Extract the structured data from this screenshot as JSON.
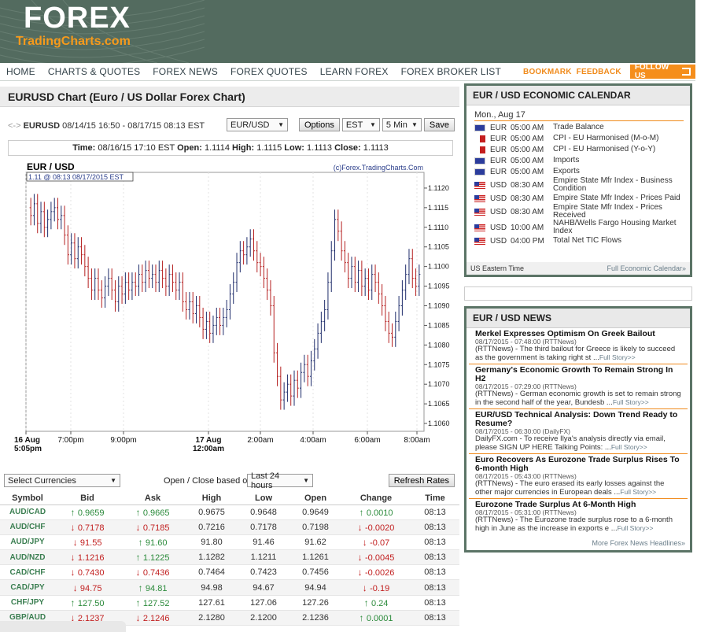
{
  "logo": {
    "main": "FOREX",
    "sub": "TradingCharts.com"
  },
  "nav": {
    "items": [
      "HOME",
      "CHARTS & QUOTES",
      "FOREX NEWS",
      "FOREX QUOTES",
      "LEARN FOREX",
      "FOREX BROKER LIST"
    ],
    "bookmark": "BOOKMARK",
    "feedback": "FEEDBACK",
    "follow": "FOLLOW US"
  },
  "page": {
    "title": "EURUSD Chart (Euro / US Dollar Forex Chart)",
    "symbol": "EURUSD",
    "range": "08/14/15 16:50 - 08/17/15 08:13 EST",
    "controls": {
      "pair": "EUR/USD",
      "options": "Options",
      "tz": "EST",
      "interval": "5 Min",
      "save": "Save"
    },
    "timeline": {
      "time_label": "Time:",
      "time": "08/16/15 17:10 EST",
      "open_label": "Open:",
      "open": "1.1114",
      "high_label": "High:",
      "high": "1.1115",
      "low_label": "Low:",
      "low": "1.1113",
      "close_label": "Close:",
      "close": "1.1113"
    }
  },
  "chart_data": {
    "type": "candlestick",
    "title": "EUR / USD",
    "subtitle": "1.11 @ 08:13  08/17/2015 EST",
    "watermark": "(c)Forex.TradingCharts.Com",
    "ylim": [
      1.1058,
      1.1124
    ],
    "yticks": [
      "1.1120",
      "1.1115",
      "1.1110",
      "1.1105",
      "1.1100",
      "1.1095",
      "1.1090",
      "1.1085",
      "1.1080",
      "1.1075",
      "1.1070",
      "1.1065",
      "1.1060"
    ],
    "xticks": [
      {
        "label": "16 Aug",
        "label2": "5:05pm",
        "bold": true
      },
      {
        "label": "7:00pm"
      },
      {
        "label": "9:00pm"
      },
      {
        "label": "17 Aug",
        "label2": "12:00am",
        "bold": true
      },
      {
        "label": "2:00am"
      },
      {
        "label": "4:00am"
      },
      {
        "label": "6:00am"
      },
      {
        "label": "8:00am"
      }
    ],
    "closes": [
      1.1113,
      1.1116,
      1.1111,
      1.1114,
      1.111,
      1.1112,
      1.1114,
      1.1115,
      1.1112,
      1.1113,
      1.1108,
      1.1103,
      1.1106,
      1.1102,
      1.1105,
      1.1103,
      1.11,
      1.1097,
      1.1094,
      1.1097,
      1.1094,
      1.1092,
      1.1095,
      1.1097,
      1.1094,
      1.1091,
      1.1095,
      1.1093,
      1.1096,
      1.1094,
      1.1096,
      1.1095,
      1.1098,
      1.1096,
      1.1099,
      1.1097,
      1.1098,
      1.1096,
      1.1099,
      1.1097,
      1.1095,
      1.1098,
      1.1096,
      1.1094,
      1.1096,
      1.1091,
      1.1089,
      1.1091,
      1.1088,
      1.109,
      1.1087,
      1.1084,
      1.1086,
      1.1083,
      1.1085,
      1.1087,
      1.1085,
      1.1087,
      1.1089,
      1.1093,
      1.1096,
      1.1101,
      1.1104,
      1.1103,
      1.1105,
      1.1107,
      1.1104,
      1.1101,
      1.11,
      1.1097,
      1.1094,
      1.109,
      1.1078,
      1.1072,
      1.1066,
      1.1068,
      1.107,
      1.1067,
      1.1071,
      1.1069,
      1.1073,
      1.1075,
      1.1072,
      1.1076,
      1.1079,
      1.1083,
      1.1086,
      1.1089,
      1.1096,
      1.1104,
      1.1112,
      1.1109,
      1.1104,
      1.1101,
      1.1097,
      1.11,
      1.1096,
      1.1099,
      1.1095,
      1.1097,
      1.1094,
      1.1098,
      1.1096,
      1.1093,
      1.109,
      1.1086,
      1.1083,
      1.1082,
      1.1086,
      1.109,
      1.1094,
      1.1098,
      1.1102,
      1.1097,
      1.1095,
      1.1098
    ]
  },
  "quotes": {
    "select_label": "Select Currencies",
    "basis_label": "Open / Close based on:",
    "basis_value": "Last 24 hours",
    "refresh": "Refresh Rates",
    "headers": [
      "Symbol",
      "Bid",
      "Ask",
      "High",
      "Low",
      "Open",
      "Change",
      "Time"
    ],
    "rows": [
      {
        "sym": "AUD/CAD",
        "bid": "0.9659",
        "bid_dir": "up",
        "ask": "0.9665",
        "ask_dir": "up",
        "high": "0.9675",
        "low": "0.9648",
        "open": "0.9649",
        "chg": "0.0010",
        "chg_dir": "up",
        "time": "08:13"
      },
      {
        "sym": "AUD/CHF",
        "bid": "0.7178",
        "bid_dir": "dn",
        "ask": "0.7185",
        "ask_dir": "dn",
        "high": "0.7216",
        "low": "0.7178",
        "open": "0.7198",
        "chg": "-0.0020",
        "chg_dir": "dn",
        "time": "08:13"
      },
      {
        "sym": "AUD/JPY",
        "bid": "91.55",
        "bid_dir": "dn",
        "ask": "91.60",
        "ask_dir": "up",
        "high": "91.80",
        "low": "91.46",
        "open": "91.62",
        "chg": "-0.07",
        "chg_dir": "dn",
        "time": "08:13"
      },
      {
        "sym": "AUD/NZD",
        "bid": "1.1216",
        "bid_dir": "dn",
        "ask": "1.1225",
        "ask_dir": "up",
        "high": "1.1282",
        "low": "1.1211",
        "open": "1.1261",
        "chg": "-0.0045",
        "chg_dir": "dn",
        "time": "08:13"
      },
      {
        "sym": "CAD/CHF",
        "bid": "0.7430",
        "bid_dir": "dn",
        "ask": "0.7436",
        "ask_dir": "dn",
        "high": "0.7464",
        "low": "0.7423",
        "open": "0.7456",
        "chg": "-0.0026",
        "chg_dir": "dn",
        "time": "08:13"
      },
      {
        "sym": "CAD/JPY",
        "bid": "94.75",
        "bid_dir": "dn",
        "ask": "94.81",
        "ask_dir": "up",
        "high": "94.98",
        "low": "94.67",
        "open": "94.94",
        "chg": "-0.19",
        "chg_dir": "dn",
        "time": "08:13"
      },
      {
        "sym": "CHF/JPY",
        "bid": "127.50",
        "bid_dir": "up",
        "ask": "127.52",
        "ask_dir": "up",
        "high": "127.61",
        "low": "127.06",
        "open": "127.26",
        "chg": "0.24",
        "chg_dir": "up",
        "time": "08:13"
      },
      {
        "sym": "GBP/AUD",
        "bid": "2.1237",
        "bid_dir": "dn",
        "ask": "2.1246",
        "ask_dir": "dn",
        "high": "2.1280",
        "low": "2.1200",
        "open": "2.1236",
        "chg": "0.0001",
        "chg_dir": "up",
        "time": "08:13"
      }
    ]
  },
  "calendar": {
    "title": "EUR / USD ECONOMIC CALENDAR",
    "date": "Mon., Aug 17",
    "events": [
      {
        "flag": "eu",
        "cur": "EUR",
        "time": "05:00 AM",
        "name": "Trade Balance"
      },
      {
        "flag": "it",
        "cur": "EUR",
        "time": "05:00 AM",
        "name": "CPI - EU Harmonised (M-o-M)"
      },
      {
        "flag": "it",
        "cur": "EUR",
        "time": "05:00 AM",
        "name": "CPI - EU Harmonised (Y-o-Y)"
      },
      {
        "flag": "eu",
        "cur": "EUR",
        "time": "05:00 AM",
        "name": "Imports"
      },
      {
        "flag": "eu",
        "cur": "EUR",
        "time": "05:00 AM",
        "name": "Exports"
      },
      {
        "flag": "us",
        "cur": "USD",
        "time": "08:30 AM",
        "name": "Empire State Mfr Index - Business Condition",
        "tall": true
      },
      {
        "flag": "us",
        "cur": "USD",
        "time": "08:30 AM",
        "name": "Empire State Mfr Index - Prices Paid"
      },
      {
        "flag": "us",
        "cur": "USD",
        "time": "08:30 AM",
        "name": "Empire State Mfr Index - Prices Received",
        "tall": true
      },
      {
        "flag": "us",
        "cur": "USD",
        "time": "10:00 AM",
        "name": "NAHB/Wells Fargo Housing Market Index",
        "tall": true
      },
      {
        "flag": "us",
        "cur": "USD",
        "time": "04:00 PM",
        "name": "Total Net TIC Flows"
      }
    ],
    "foot_left": "US Eastern Time",
    "foot_right": "Full Economic Calendar»"
  },
  "news": {
    "title": "EUR / USD NEWS",
    "items": [
      {
        "h": "Merkel Expresses Optimism On Greek Bailout",
        "d": "08/17/2015 - 07:48:00 (RTTNews)",
        "s": "(RTTNews) - The third bailout for Greece is likely to succeed as the government is taking right st ...",
        "more": "Full Story>>"
      },
      {
        "h": "Germany's Economic Growth To Remain Strong In H2",
        "d": "08/17/2015 - 07:29:00 (RTTNews)",
        "s": "(RTTNews) - German economic growth is set to remain strong in the second half of the year, Bundesb ...",
        "more": "Full Story>>"
      },
      {
        "h": "EUR/USD Technical Analysis: Down Trend Ready to Resume?",
        "d": "08/17/2015 - 06:30:00 (DailyFX)",
        "s": "DailyFX.com - To receive Ilya's analysis directly via email, please SIGN UP HERE Talking Points: ...",
        "more": "Full Story>>"
      },
      {
        "h": "Euro Recovers As Eurozone Trade Surplus Rises To 6-month High",
        "d": "08/17/2015 - 05:43:00 (RTTNews)",
        "s": "(RTTNews) - The euro erased its early losses against the other major currencies in European deals ...",
        "more": "Full Story>>"
      },
      {
        "h": "Eurozone Trade Surplus At 6-Month High",
        "d": "08/17/2015 - 05:31:00 (RTTNews)",
        "s": "(RTTNews) - The Eurozone trade surplus rose to a 6-month high in June as the increase in exports e ...",
        "more": "Full Story>>"
      }
    ],
    "foot": "More Forex News Headlines»"
  },
  "colors": {
    "header": "#536b5f",
    "accent": "#f58e1c",
    "up": "#2a8a3a",
    "down": "#c22020",
    "candle_up": "#1f2d6b",
    "candle_down": "#b52020"
  }
}
